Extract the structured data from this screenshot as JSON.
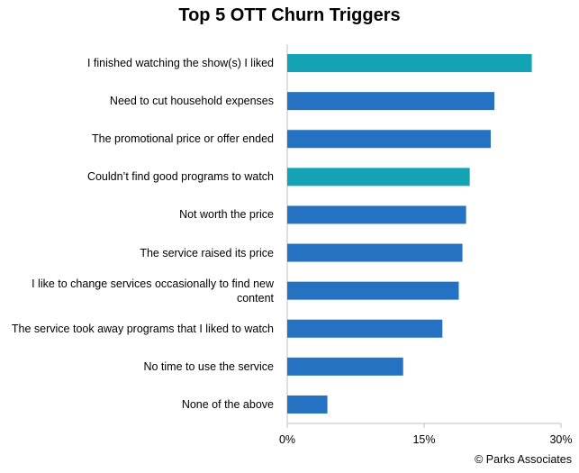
{
  "chart_data": {
    "type": "bar",
    "orientation": "horizontal",
    "title": "Top 5 OTT Churn Triggers",
    "categories": [
      "I finished watching the show(s) I liked",
      "Need to cut household expenses",
      "The promotional price or offer ended",
      "Couldn’t find good programs to watch",
      "Not worth the price",
      "The service raised its price",
      "I like to change services occasionally to find new content",
      "The service took away programs that I liked to watch",
      "No time to use the service",
      "None of the above"
    ],
    "values": [
      26.8,
      22.7,
      22.3,
      20.0,
      19.6,
      19.2,
      18.8,
      17.0,
      12.7,
      4.4
    ],
    "colors": [
      "#13a3b5",
      "#2472c1",
      "#2472c1",
      "#13a3b5",
      "#2472c1",
      "#2472c1",
      "#2472c1",
      "#2472c1",
      "#2472c1",
      "#2472c1"
    ],
    "xlim": [
      0,
      30
    ],
    "xticks": [
      {
        "value": 0,
        "label": "0%"
      },
      {
        "value": 15,
        "label": "15%"
      },
      {
        "value": 30,
        "label": "30%"
      }
    ],
    "grid": false,
    "source": "© Parks Associates"
  }
}
